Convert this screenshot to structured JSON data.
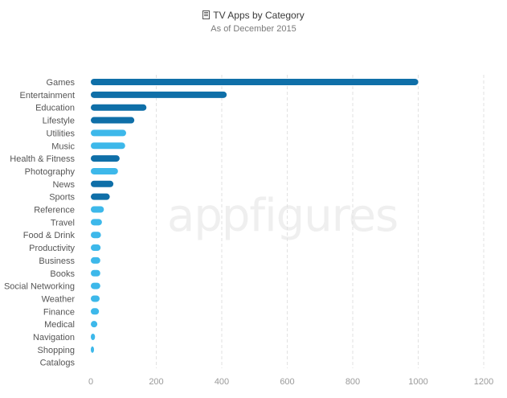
{
  "header": {
    "title": "TV Apps by Category",
    "subtitle": "As of December 2015",
    "title_icon": "tv-icon"
  },
  "watermark": "appfigures",
  "colors": {
    "dark_bar": "#0f6fa8",
    "light_bar": "#3db8ea",
    "grid": "#e2e2e2",
    "axis_text": "#9a9a9a",
    "label_text": "#555555"
  },
  "chart_data": {
    "type": "bar",
    "orientation": "horizontal",
    "title": "TV Apps by Category",
    "subtitle": "As of December 2015",
    "categories": [
      "Games",
      "Entertainment",
      "Education",
      "Lifestyle",
      "Utilities",
      "Music",
      "Health & Fitness",
      "Photography",
      "News",
      "Sports",
      "Reference",
      "Travel",
      "Food & Drink",
      "Productivity",
      "Business",
      "Books",
      "Social Networking",
      "Weather",
      "Finance",
      "Medical",
      "Navigation",
      "Shopping",
      "Catalogs"
    ],
    "values": [
      1000,
      415,
      170,
      133,
      108,
      105,
      88,
      83,
      69,
      58,
      40,
      34,
      31,
      30,
      29,
      29,
      29,
      27,
      25,
      20,
      13,
      6,
      0
    ],
    "shade": [
      "dark",
      "dark",
      "dark",
      "dark",
      "light",
      "light",
      "dark",
      "light",
      "dark",
      "dark",
      "light",
      "light",
      "light",
      "light",
      "light",
      "light",
      "light",
      "light",
      "light",
      "light",
      "light",
      "light",
      "light"
    ],
    "xlim": [
      0,
      1200
    ],
    "xticks": [
      0,
      200,
      400,
      600,
      800,
      1000,
      1200
    ],
    "grid": "vertical dashed",
    "legend": "none"
  }
}
